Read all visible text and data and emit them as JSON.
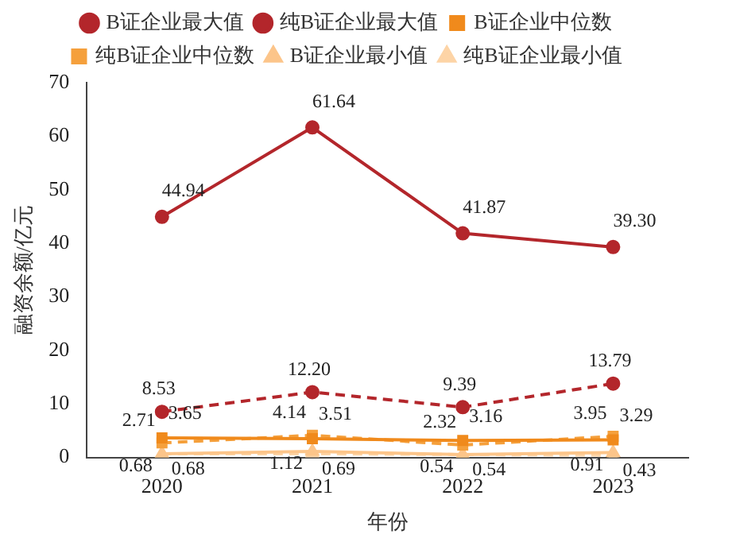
{
  "chart_data": {
    "type": "line",
    "xlabel": "年份",
    "ylabel": "融资余额/亿元",
    "categories": [
      "2020",
      "2021",
      "2022",
      "2023"
    ],
    "series": [
      {
        "name": "B证企业最大值",
        "color": "#b3262b",
        "marker": "circle",
        "line_style": "solid",
        "values": [
          44.94,
          61.64,
          41.87,
          39.3
        ],
        "value_labels": [
          "44.94",
          "61.64",
          "41.87",
          "39.30"
        ]
      },
      {
        "name": "纯B证企业最大值",
        "color": "#b3262b",
        "marker": "circle",
        "line_style": "dashed",
        "values": [
          8.53,
          12.2,
          9.39,
          13.79
        ],
        "value_labels": [
          "8.53",
          "12.20",
          "9.39",
          "13.79"
        ]
      },
      {
        "name": "B证企业中位数",
        "color": "#f08a1c",
        "marker": "square",
        "line_style": "solid",
        "values": [
          3.65,
          3.51,
          3.16,
          3.29
        ],
        "value_labels": [
          "3.65",
          "3.51",
          "3.16",
          "3.29"
        ]
      },
      {
        "name": "纯B证企业中位数",
        "color": "#f5a03c",
        "marker": "square",
        "line_style": "dashed",
        "values": [
          2.71,
          4.14,
          2.32,
          3.95
        ],
        "value_labels": [
          "2.71",
          "4.14",
          "2.32",
          "3.95"
        ]
      },
      {
        "name": "B证企业最小值",
        "color": "#fcc58a",
        "marker": "triangle",
        "line_style": "solid",
        "values": [
          0.68,
          1.12,
          0.54,
          0.91
        ],
        "value_labels": [
          "0.68",
          "1.12",
          "0.54",
          "0.91"
        ]
      },
      {
        "name": "纯B证企业最小值",
        "color": "#fdd4a6",
        "marker": "triangle",
        "line_style": "dashed",
        "values": [
          0.68,
          0.69,
          0.54,
          0.43
        ],
        "value_labels": [
          "0.68",
          "0.69",
          "0.54",
          "0.43"
        ]
      }
    ],
    "ylim": [
      0,
      70
    ],
    "yticks": [
      0,
      10,
      20,
      30,
      40,
      50,
      60,
      70
    ],
    "grid": false,
    "legend": "top"
  }
}
